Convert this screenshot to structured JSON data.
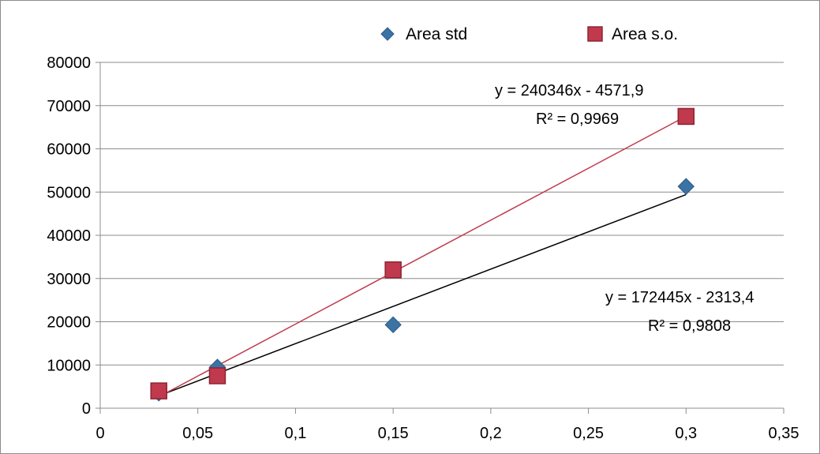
{
  "chart_data": {
    "type": "scatter",
    "title": "",
    "xlabel": "",
    "ylabel": "",
    "xlim": [
      0,
      0.35
    ],
    "ylim": [
      0,
      80000
    ],
    "x_ticks": [
      0,
      0.05,
      0.1,
      0.15,
      0.2,
      0.25,
      0.3,
      0.35
    ],
    "x_tick_labels": [
      "0",
      "0,05",
      "0,1",
      "0,15",
      "0,2",
      "0,25",
      "0,3",
      "0,35"
    ],
    "y_ticks": [
      0,
      10000,
      20000,
      30000,
      40000,
      50000,
      60000,
      70000,
      80000
    ],
    "y_tick_labels": [
      "0",
      "10000",
      "20000",
      "30000",
      "40000",
      "50000",
      "60000",
      "70000",
      "80000"
    ],
    "grid": {
      "horizontal": true,
      "vertical": false
    },
    "legend": {
      "position": "top-center"
    },
    "series": [
      {
        "name": "Area std",
        "marker": "diamond",
        "color": "#3d72a4",
        "x": [
          0.03,
          0.06,
          0.15,
          0.3
        ],
        "y": [
          3500,
          9500,
          19300,
          51300
        ],
        "trendline": {
          "slope": 172445,
          "intercept": -2313.4,
          "color": "#000000",
          "equation": "y = 172445x - 2313,4",
          "r2": "R² = 0,9808"
        }
      },
      {
        "name": "Area  s.o.",
        "marker": "square",
        "color": "#c0394c",
        "x": [
          0.03,
          0.06,
          0.15,
          0.3
        ],
        "y": [
          4000,
          7500,
          32000,
          67500
        ],
        "trendline": {
          "slope": 240346,
          "intercept": -4571.9,
          "color": "#c0394c",
          "equation": "y = 240346x - 4571,9",
          "r2": "R² = 0,9969"
        }
      }
    ]
  }
}
